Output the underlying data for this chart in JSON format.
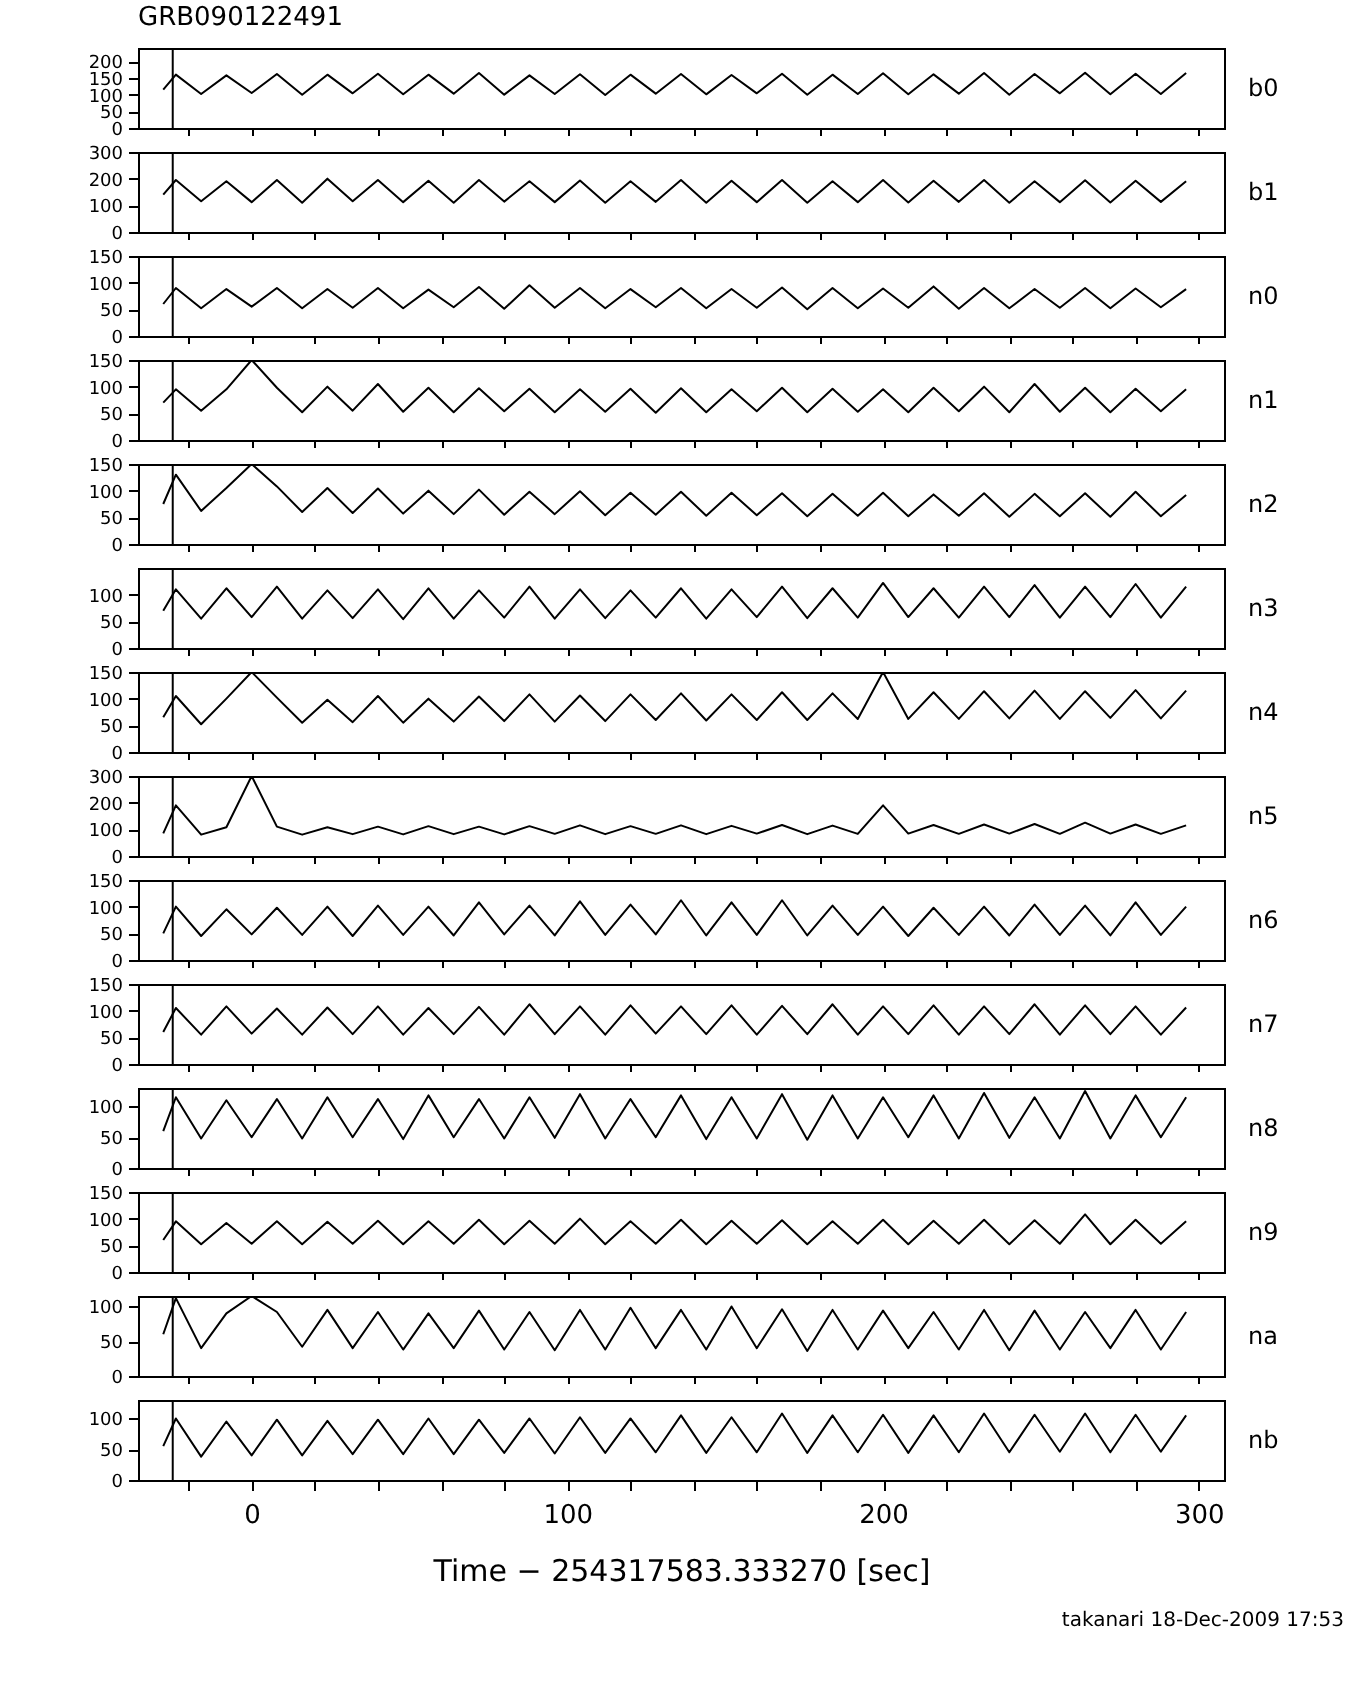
{
  "chart_data": [
    {
      "type": "line",
      "title": "GRB090122491",
      "xlim": [
        -36,
        308
      ],
      "xticks": [
        {
          "value": -20,
          "label": null
        },
        0,
        {
          "value": 20,
          "label": null
        },
        {
          "value": 40,
          "label": null
        },
        {
          "value": 60,
          "label": null
        },
        {
          "value": 80,
          "label": null
        },
        100,
        {
          "value": 120,
          "label": null
        },
        {
          "value": 140,
          "label": null
        },
        {
          "value": 160,
          "label": null
        },
        {
          "value": 180,
          "label": null
        },
        200,
        {
          "value": 220,
          "label": null
        },
        {
          "value": 240,
          "label": null
        },
        {
          "value": 260,
          "label": null
        },
        {
          "value": 280,
          "label": null
        },
        300
      ],
      "ylim": [
        0,
        240
      ],
      "yticks": [
        0,
        50,
        100,
        150,
        200
      ],
      "tick_labels": "y",
      "grid": false,
      "ref_lines": [
        {
          "axis": "x",
          "value": -25
        }
      ],
      "x": [
        -28,
        -24,
        -16,
        -8,
        0,
        8,
        16,
        24,
        32,
        40,
        48,
        56,
        64,
        72,
        80,
        88,
        96,
        104,
        112,
        120,
        128,
        136,
        144,
        152,
        160,
        168,
        176,
        184,
        192,
        200,
        208,
        216,
        224,
        232,
        240,
        248,
        256,
        264,
        272,
        280,
        288,
        296
      ],
      "series": [
        {
          "name": "b0",
          "color": "#000000",
          "values": [
            115,
            160,
            102,
            158,
            105,
            162,
            100,
            160,
            104,
            163,
            101,
            160,
            103,
            165,
            100,
            158,
            102,
            161,
            99,
            160,
            103,
            162,
            101,
            159,
            104,
            163,
            100,
            160,
            102,
            164,
            101,
            161,
            103,
            165,
            100,
            162,
            104,
            166,
            101,
            163,
            102,
            165
          ]
        }
      ]
    },
    {
      "type": "line",
      "xlim": [
        -36,
        308
      ],
      "xticks": [
        {
          "value": -20,
          "label": null
        },
        0,
        {
          "value": 20,
          "label": null
        },
        {
          "value": 40,
          "label": null
        },
        {
          "value": 60,
          "label": null
        },
        {
          "value": 80,
          "label": null
        },
        100,
        {
          "value": 120,
          "label": null
        },
        {
          "value": 140,
          "label": null
        },
        {
          "value": 160,
          "label": null
        },
        {
          "value": 180,
          "label": null
        },
        200,
        {
          "value": 220,
          "label": null
        },
        {
          "value": 240,
          "label": null
        },
        {
          "value": 260,
          "label": null
        },
        {
          "value": 280,
          "label": null
        },
        300
      ],
      "ylim": [
        0,
        300
      ],
      "yticks": [
        0,
        100,
        200,
        300
      ],
      "tick_labels": "y",
      "grid": false,
      "ref_lines": [
        {
          "axis": "x",
          "value": -25
        }
      ],
      "x": [
        -28,
        -24,
        -16,
        -8,
        0,
        8,
        16,
        24,
        32,
        40,
        48,
        56,
        64,
        72,
        80,
        88,
        96,
        104,
        112,
        120,
        128,
        136,
        144,
        152,
        160,
        168,
        176,
        184,
        192,
        200,
        208,
        216,
        224,
        232,
        240,
        248,
        256,
        264,
        272,
        280,
        288,
        296
      ],
      "series": [
        {
          "name": "b1",
          "color": "#000000",
          "values": [
            140,
            195,
            115,
            190,
            112,
            195,
            110,
            200,
            115,
            195,
            112,
            192,
            110,
            195,
            114,
            190,
            112,
            193,
            110,
            190,
            113,
            195,
            110,
            192,
            112,
            195,
            110,
            190,
            112,
            195,
            111,
            192,
            113,
            195,
            110,
            190,
            112,
            194,
            111,
            192,
            113,
            190
          ]
        }
      ]
    },
    {
      "type": "line",
      "xlim": [
        -36,
        308
      ],
      "xticks": [
        {
          "value": -20,
          "label": null
        },
        0,
        {
          "value": 20,
          "label": null
        },
        {
          "value": 40,
          "label": null
        },
        {
          "value": 60,
          "label": null
        },
        {
          "value": 80,
          "label": null
        },
        100,
        {
          "value": 120,
          "label": null
        },
        {
          "value": 140,
          "label": null
        },
        {
          "value": 160,
          "label": null
        },
        {
          "value": 180,
          "label": null
        },
        200,
        {
          "value": 220,
          "label": null
        },
        {
          "value": 240,
          "label": null
        },
        {
          "value": 260,
          "label": null
        },
        {
          "value": 280,
          "label": null
        },
        300
      ],
      "ylim": [
        0,
        150
      ],
      "yticks": [
        0,
        50,
        100,
        150
      ],
      "tick_labels": "y",
      "grid": false,
      "ref_lines": [
        {
          "axis": "x",
          "value": -25
        }
      ],
      "x": [
        -28,
        -24,
        -16,
        -8,
        0,
        8,
        16,
        24,
        32,
        40,
        48,
        56,
        64,
        72,
        80,
        88,
        96,
        104,
        112,
        120,
        128,
        136,
        144,
        152,
        160,
        168,
        176,
        184,
        192,
        200,
        208,
        216,
        224,
        232,
        240,
        248,
        256,
        264,
        272,
        280,
        288,
        296
      ],
      "series": [
        {
          "name": "n0",
          "color": "#000000",
          "values": [
            60,
            90,
            52,
            88,
            55,
            90,
            52,
            88,
            53,
            90,
            52,
            87,
            54,
            92,
            51,
            95,
            53,
            90,
            52,
            88,
            54,
            90,
            52,
            88,
            53,
            91,
            50,
            90,
            52,
            89,
            53,
            93,
            51,
            90,
            52,
            88,
            53,
            90,
            52,
            89,
            54,
            88
          ]
        }
      ]
    },
    {
      "type": "line",
      "xlim": [
        -36,
        308
      ],
      "xticks": [
        {
          "value": -20,
          "label": null
        },
        0,
        {
          "value": 20,
          "label": null
        },
        {
          "value": 40,
          "label": null
        },
        {
          "value": 60,
          "label": null
        },
        {
          "value": 80,
          "label": null
        },
        100,
        {
          "value": 120,
          "label": null
        },
        {
          "value": 140,
          "label": null
        },
        {
          "value": 160,
          "label": null
        },
        {
          "value": 180,
          "label": null
        },
        200,
        {
          "value": 220,
          "label": null
        },
        {
          "value": 240,
          "label": null
        },
        {
          "value": 260,
          "label": null
        },
        {
          "value": 280,
          "label": null
        },
        300
      ],
      "ylim": [
        0,
        150
      ],
      "yticks": [
        0,
        50,
        100,
        150
      ],
      "tick_labels": "y",
      "grid": false,
      "ref_lines": [
        {
          "axis": "x",
          "value": -25
        }
      ],
      "x": [
        -28,
        -24,
        -16,
        -8,
        0,
        8,
        16,
        24,
        32,
        40,
        48,
        56,
        64,
        72,
        80,
        88,
        96,
        104,
        112,
        120,
        128,
        136,
        144,
        152,
        160,
        168,
        176,
        184,
        192,
        200,
        208,
        216,
        224,
        232,
        240,
        248,
        256,
        264,
        272,
        280,
        288,
        296
      ],
      "series": [
        {
          "name": "n1",
          "color": "#000000",
          "values": [
            70,
            95,
            55,
            95,
            150,
            98,
            52,
            100,
            55,
            105,
            53,
            98,
            52,
            97,
            54,
            96,
            52,
            95,
            53,
            96,
            51,
            97,
            52,
            95,
            54,
            98,
            52,
            96,
            53,
            95,
            52,
            98,
            54,
            100,
            52,
            105,
            53,
            98,
            52,
            96,
            54,
            95
          ]
        }
      ]
    },
    {
      "type": "line",
      "xlim": [
        -36,
        308
      ],
      "xticks": [
        {
          "value": -20,
          "label": null
        },
        0,
        {
          "value": 20,
          "label": null
        },
        {
          "value": 40,
          "label": null
        },
        {
          "value": 60,
          "label": null
        },
        {
          "value": 80,
          "label": null
        },
        100,
        {
          "value": 120,
          "label": null
        },
        {
          "value": 140,
          "label": null
        },
        {
          "value": 160,
          "label": null
        },
        {
          "value": 180,
          "label": null
        },
        200,
        {
          "value": 220,
          "label": null
        },
        {
          "value": 240,
          "label": null
        },
        {
          "value": 260,
          "label": null
        },
        {
          "value": 280,
          "label": null
        },
        300
      ],
      "ylim": [
        0,
        150
      ],
      "yticks": [
        0,
        50,
        100,
        150
      ],
      "tick_labels": "y",
      "grid": false,
      "ref_lines": [
        {
          "axis": "x",
          "value": -25
        }
      ],
      "x": [
        -28,
        -24,
        -16,
        -8,
        0,
        8,
        16,
        24,
        32,
        40,
        48,
        56,
        64,
        72,
        80,
        88,
        96,
        104,
        112,
        120,
        128,
        136,
        144,
        152,
        160,
        168,
        176,
        184,
        192,
        200,
        208,
        216,
        224,
        232,
        240,
        248,
        256,
        264,
        272,
        280,
        288,
        296
      ],
      "series": [
        {
          "name": "n2",
          "color": "#000000",
          "values": [
            75,
            130,
            62,
            105,
            150,
            108,
            60,
            105,
            58,
            104,
            57,
            100,
            56,
            102,
            55,
            98,
            56,
            99,
            54,
            96,
            55,
            98,
            53,
            96,
            54,
            95,
            52,
            94,
            53,
            96,
            52,
            93,
            53,
            95,
            51,
            94,
            52,
            95,
            51,
            98,
            52,
            92
          ]
        }
      ]
    },
    {
      "type": "line",
      "xlim": [
        -36,
        308
      ],
      "xticks": [
        {
          "value": -20,
          "label": null
        },
        0,
        {
          "value": 20,
          "label": null
        },
        {
          "value": 40,
          "label": null
        },
        {
          "value": 60,
          "label": null
        },
        {
          "value": 80,
          "label": null
        },
        100,
        {
          "value": 120,
          "label": null
        },
        {
          "value": 140,
          "label": null
        },
        {
          "value": 160,
          "label": null
        },
        {
          "value": 180,
          "label": null
        },
        200,
        {
          "value": 220,
          "label": null
        },
        {
          "value": 240,
          "label": null
        },
        {
          "value": 260,
          "label": null
        },
        {
          "value": 280,
          "label": null
        },
        300
      ],
      "ylim": [
        0,
        150
      ],
      "yticks": [
        0,
        50,
        100
      ],
      "tick_labels": "y",
      "grid": false,
      "ref_lines": [
        {
          "axis": "x",
          "value": -25
        }
      ],
      "x": [
        -28,
        -24,
        -16,
        -8,
        0,
        8,
        16,
        24,
        32,
        40,
        48,
        56,
        64,
        72,
        80,
        88,
        96,
        104,
        112,
        120,
        128,
        136,
        144,
        152,
        160,
        168,
        176,
        184,
        192,
        200,
        208,
        216,
        224,
        232,
        240,
        248,
        256,
        264,
        272,
        280,
        288,
        296
      ],
      "series": [
        {
          "name": "n3",
          "color": "#000000",
          "values": [
            70,
            110,
            55,
            112,
            58,
            115,
            55,
            108,
            56,
            110,
            54,
            112,
            55,
            108,
            57,
            115,
            55,
            110,
            56,
            108,
            57,
            112,
            55,
            110,
            58,
            115,
            56,
            112,
            57,
            122,
            58,
            112,
            57,
            115,
            58,
            118,
            57,
            115,
            58,
            120,
            57,
            115
          ]
        }
      ]
    },
    {
      "type": "line",
      "xlim": [
        -36,
        308
      ],
      "xticks": [
        {
          "value": -20,
          "label": null
        },
        0,
        {
          "value": 20,
          "label": null
        },
        {
          "value": 40,
          "label": null
        },
        {
          "value": 60,
          "label": null
        },
        {
          "value": 80,
          "label": null
        },
        100,
        {
          "value": 120,
          "label": null
        },
        {
          "value": 140,
          "label": null
        },
        {
          "value": 160,
          "label": null
        },
        {
          "value": 180,
          "label": null
        },
        200,
        {
          "value": 220,
          "label": null
        },
        {
          "value": 240,
          "label": null
        },
        {
          "value": 260,
          "label": null
        },
        {
          "value": 280,
          "label": null
        },
        300
      ],
      "ylim": [
        0,
        150
      ],
      "yticks": [
        0,
        50,
        100,
        150
      ],
      "tick_labels": "y",
      "grid": false,
      "ref_lines": [
        {
          "axis": "x",
          "value": -25
        }
      ],
      "x": [
        -28,
        -24,
        -16,
        -8,
        0,
        8,
        16,
        24,
        32,
        40,
        48,
        56,
        64,
        72,
        80,
        88,
        96,
        104,
        112,
        120,
        128,
        136,
        144,
        152,
        160,
        168,
        176,
        184,
        192,
        200,
        208,
        216,
        224,
        232,
        240,
        248,
        256,
        264,
        272,
        280,
        288,
        296
      ],
      "series": [
        {
          "name": "n4",
          "color": "#000000",
          "values": [
            65,
            105,
            52,
            100,
            150,
            102,
            55,
            98,
            56,
            105,
            55,
            100,
            57,
            104,
            58,
            108,
            57,
            106,
            58,
            108,
            60,
            110,
            59,
            108,
            60,
            112,
            60,
            110,
            62,
            150,
            62,
            112,
            62,
            114,
            63,
            115,
            62,
            114,
            64,
            116,
            63,
            115
          ]
        }
      ]
    },
    {
      "type": "line",
      "xlim": [
        -36,
        308
      ],
      "xticks": [
        {
          "value": -20,
          "label": null
        },
        0,
        {
          "value": 20,
          "label": null
        },
        {
          "value": 40,
          "label": null
        },
        {
          "value": 60,
          "label": null
        },
        {
          "value": 80,
          "label": null
        },
        100,
        {
          "value": 120,
          "label": null
        },
        {
          "value": 140,
          "label": null
        },
        {
          "value": 160,
          "label": null
        },
        {
          "value": 180,
          "label": null
        },
        200,
        {
          "value": 220,
          "label": null
        },
        {
          "value": 240,
          "label": null
        },
        {
          "value": 260,
          "label": null
        },
        {
          "value": 280,
          "label": null
        },
        300
      ],
      "ylim": [
        0,
        300
      ],
      "yticks": [
        0,
        100,
        200,
        300
      ],
      "tick_labels": "y",
      "grid": false,
      "ref_lines": [
        {
          "axis": "x",
          "value": -25
        }
      ],
      "x": [
        -28,
        -24,
        -16,
        -8,
        0,
        8,
        16,
        24,
        32,
        40,
        48,
        56,
        64,
        72,
        80,
        88,
        96,
        104,
        112,
        120,
        128,
        136,
        144,
        152,
        160,
        168,
        176,
        184,
        192,
        200,
        208,
        216,
        224,
        232,
        240,
        248,
        256,
        264,
        272,
        280,
        288,
        296
      ],
      "series": [
        {
          "name": "n5",
          "color": "#000000",
          "values": [
            85,
            190,
            80,
            108,
            300,
            110,
            80,
            108,
            82,
            110,
            81,
            112,
            82,
            110,
            81,
            112,
            83,
            115,
            82,
            112,
            83,
            115,
            82,
            113,
            84,
            116,
            82,
            114,
            83,
            190,
            84,
            116,
            83,
            118,
            84,
            120,
            83,
            125,
            84,
            118,
            83,
            115
          ]
        }
      ]
    },
    {
      "type": "line",
      "xlim": [
        -36,
        308
      ],
      "xticks": [
        {
          "value": -20,
          "label": null
        },
        0,
        {
          "value": 20,
          "label": null
        },
        {
          "value": 40,
          "label": null
        },
        {
          "value": 60,
          "label": null
        },
        {
          "value": 80,
          "label": null
        },
        100,
        {
          "value": 120,
          "label": null
        },
        {
          "value": 140,
          "label": null
        },
        {
          "value": 160,
          "label": null
        },
        {
          "value": 180,
          "label": null
        },
        200,
        {
          "value": 220,
          "label": null
        },
        {
          "value": 240,
          "label": null
        },
        {
          "value": 260,
          "label": null
        },
        {
          "value": 280,
          "label": null
        },
        300
      ],
      "ylim": [
        0,
        150
      ],
      "yticks": [
        0,
        50,
        100,
        150
      ],
      "tick_labels": "y",
      "grid": false,
      "ref_lines": [
        {
          "axis": "x",
          "value": -25
        }
      ],
      "x": [
        -28,
        -24,
        -16,
        -8,
        0,
        8,
        16,
        24,
        32,
        40,
        48,
        56,
        64,
        72,
        80,
        88,
        96,
        104,
        112,
        120,
        128,
        136,
        144,
        152,
        160,
        168,
        176,
        184,
        192,
        200,
        208,
        216,
        224,
        232,
        240,
        248,
        256,
        264,
        272,
        280,
        288,
        296
      ],
      "series": [
        {
          "name": "n6",
          "color": "#000000",
          "values": [
            50,
            100,
            45,
            95,
            48,
            98,
            47,
            100,
            45,
            102,
            47,
            100,
            46,
            108,
            48,
            102,
            46,
            110,
            47,
            104,
            48,
            112,
            46,
            108,
            47,
            112,
            46,
            102,
            47,
            100,
            45,
            98,
            47,
            100,
            46,
            104,
            47,
            102,
            46,
            108,
            47,
            100
          ]
        }
      ]
    },
    {
      "type": "line",
      "xlim": [
        -36,
        308
      ],
      "xticks": [
        {
          "value": -20,
          "label": null
        },
        0,
        {
          "value": 20,
          "label": null
        },
        {
          "value": 40,
          "label": null
        },
        {
          "value": 60,
          "label": null
        },
        {
          "value": 80,
          "label": null
        },
        100,
        {
          "value": 120,
          "label": null
        },
        {
          "value": 140,
          "label": null
        },
        {
          "value": 160,
          "label": null
        },
        {
          "value": 180,
          "label": null
        },
        200,
        {
          "value": 220,
          "label": null
        },
        {
          "value": 240,
          "label": null
        },
        {
          "value": 260,
          "label": null
        },
        {
          "value": 280,
          "label": null
        },
        300
      ],
      "ylim": [
        0,
        150
      ],
      "yticks": [
        0,
        50,
        100,
        150
      ],
      "tick_labels": "y",
      "grid": false,
      "ref_lines": [
        {
          "axis": "x",
          "value": -25
        }
      ],
      "x": [
        -28,
        -24,
        -16,
        -8,
        0,
        8,
        16,
        24,
        32,
        40,
        48,
        56,
        64,
        72,
        80,
        88,
        96,
        104,
        112,
        120,
        128,
        136,
        144,
        152,
        160,
        168,
        176,
        184,
        192,
        200,
        208,
        216,
        224,
        232,
        240,
        248,
        256,
        264,
        272,
        280,
        288,
        296
      ],
      "series": [
        {
          "name": "n7",
          "color": "#000000",
          "values": [
            60,
            105,
            55,
            108,
            57,
            104,
            55,
            106,
            56,
            108,
            55,
            105,
            56,
            107,
            55,
            112,
            56,
            108,
            55,
            110,
            57,
            108,
            56,
            110,
            55,
            109,
            56,
            112,
            55,
            108,
            56,
            110,
            55,
            108,
            56,
            112,
            55,
            110,
            56,
            108,
            55,
            106
          ]
        }
      ]
    },
    {
      "type": "line",
      "xlim": [
        -36,
        308
      ],
      "xticks": [
        {
          "value": -20,
          "label": null
        },
        0,
        {
          "value": 20,
          "label": null
        },
        {
          "value": 40,
          "label": null
        },
        {
          "value": 60,
          "label": null
        },
        {
          "value": 80,
          "label": null
        },
        100,
        {
          "value": 120,
          "label": null
        },
        {
          "value": 140,
          "label": null
        },
        {
          "value": 160,
          "label": null
        },
        {
          "value": 180,
          "label": null
        },
        200,
        {
          "value": 220,
          "label": null
        },
        {
          "value": 240,
          "label": null
        },
        {
          "value": 260,
          "label": null
        },
        {
          "value": 280,
          "label": null
        },
        300
      ],
      "ylim": [
        0,
        130
      ],
      "yticks": [
        0,
        50,
        100
      ],
      "tick_labels": "y",
      "grid": false,
      "ref_lines": [
        {
          "axis": "x",
          "value": -25
        }
      ],
      "x": [
        -28,
        -24,
        -16,
        -8,
        0,
        8,
        16,
        24,
        32,
        40,
        48,
        56,
        64,
        72,
        80,
        88,
        96,
        104,
        112,
        120,
        128,
        136,
        144,
        152,
        160,
        168,
        176,
        184,
        192,
        200,
        208,
        216,
        224,
        232,
        240,
        248,
        256,
        264,
        272,
        280,
        288,
        296
      ],
      "series": [
        {
          "name": "n8",
          "color": "#000000",
          "values": [
            60,
            115,
            48,
            110,
            50,
            112,
            48,
            115,
            50,
            112,
            47,
            118,
            50,
            112,
            48,
            115,
            49,
            120,
            48,
            112,
            50,
            118,
            47,
            115,
            48,
            120,
            46,
            118,
            48,
            115,
            50,
            118,
            48,
            122,
            49,
            115,
            48,
            125,
            48,
            118,
            50,
            115
          ]
        }
      ]
    },
    {
      "type": "line",
      "xlim": [
        -36,
        308
      ],
      "xticks": [
        {
          "value": -20,
          "label": null
        },
        0,
        {
          "value": 20,
          "label": null
        },
        {
          "value": 40,
          "label": null
        },
        {
          "value": 60,
          "label": null
        },
        {
          "value": 80,
          "label": null
        },
        100,
        {
          "value": 120,
          "label": null
        },
        {
          "value": 140,
          "label": null
        },
        {
          "value": 160,
          "label": null
        },
        {
          "value": 180,
          "label": null
        },
        200,
        {
          "value": 220,
          "label": null
        },
        {
          "value": 240,
          "label": null
        },
        {
          "value": 260,
          "label": null
        },
        {
          "value": 280,
          "label": null
        },
        300
      ],
      "ylim": [
        0,
        150
      ],
      "yticks": [
        0,
        50,
        100,
        150
      ],
      "tick_labels": "y",
      "grid": false,
      "ref_lines": [
        {
          "axis": "x",
          "value": -25
        }
      ],
      "x": [
        -28,
        -24,
        -16,
        -8,
        0,
        8,
        16,
        24,
        32,
        40,
        48,
        56,
        64,
        72,
        80,
        88,
        96,
        104,
        112,
        120,
        128,
        136,
        144,
        152,
        160,
        168,
        176,
        184,
        192,
        200,
        208,
        216,
        224,
        232,
        240,
        248,
        256,
        264,
        272,
        280,
        288,
        296
      ],
      "series": [
        {
          "name": "n9",
          "color": "#000000",
          "values": [
            60,
            95,
            52,
            92,
            53,
            95,
            52,
            94,
            53,
            96,
            52,
            95,
            53,
            98,
            52,
            96,
            53,
            100,
            52,
            95,
            53,
            98,
            52,
            96,
            53,
            97,
            52,
            95,
            53,
            98,
            52,
            96,
            53,
            98,
            52,
            97,
            53,
            108,
            52,
            98,
            53,
            95
          ]
        }
      ]
    },
    {
      "type": "line",
      "xlim": [
        -36,
        308
      ],
      "xticks": [
        {
          "value": -20,
          "label": null
        },
        0,
        {
          "value": 20,
          "label": null
        },
        {
          "value": 40,
          "label": null
        },
        {
          "value": 60,
          "label": null
        },
        {
          "value": 80,
          "label": null
        },
        100,
        {
          "value": 120,
          "label": null
        },
        {
          "value": 140,
          "label": null
        },
        {
          "value": 160,
          "label": null
        },
        {
          "value": 180,
          "label": null
        },
        200,
        {
          "value": 220,
          "label": null
        },
        {
          "value": 240,
          "label": null
        },
        {
          "value": 260,
          "label": null
        },
        {
          "value": 280,
          "label": null
        },
        300
      ],
      "ylim": [
        0,
        115
      ],
      "yticks": [
        0,
        50,
        100
      ],
      "tick_labels": "y",
      "grid": false,
      "ref_lines": [
        {
          "axis": "x",
          "value": -25
        }
      ],
      "x": [
        -28,
        -24,
        -16,
        -8,
        0,
        8,
        16,
        24,
        32,
        40,
        48,
        56,
        64,
        72,
        80,
        88,
        96,
        104,
        112,
        120,
        128,
        136,
        144,
        152,
        160,
        168,
        176,
        184,
        192,
        200,
        208,
        216,
        224,
        232,
        240,
        248,
        256,
        264,
        272,
        280,
        288,
        296
      ],
      "series": [
        {
          "name": "na",
          "color": "#000000",
          "values": [
            60,
            112,
            40,
            90,
            115,
            92,
            42,
            95,
            40,
            92,
            38,
            90,
            40,
            94,
            38,
            92,
            37,
            95,
            38,
            98,
            40,
            95,
            38,
            100,
            40,
            96,
            36,
            95,
            38,
            94,
            40,
            92,
            38,
            95,
            37,
            94,
            38,
            92,
            40,
            95,
            38,
            92
          ]
        }
      ]
    },
    {
      "type": "line",
      "xlabel": "Time − 254317583.333270 [sec]",
      "annotations": [
        "takanari 18-Dec-2009 17:53"
      ],
      "xlim": [
        -36,
        308
      ],
      "xticks": [
        {
          "value": -20,
          "label": null
        },
        0,
        {
          "value": 20,
          "label": null
        },
        {
          "value": 40,
          "label": null
        },
        {
          "value": 60,
          "label": null
        },
        {
          "value": 80,
          "label": null
        },
        100,
        {
          "value": 120,
          "label": null
        },
        {
          "value": 140,
          "label": null
        },
        {
          "value": 160,
          "label": null
        },
        {
          "value": 180,
          "label": null
        },
        200,
        {
          "value": 220,
          "label": null
        },
        {
          "value": 240,
          "label": null
        },
        {
          "value": 260,
          "label": null
        },
        {
          "value": 280,
          "label": null
        },
        300
      ],
      "ylim": [
        0,
        130
      ],
      "yticks": [
        0,
        50,
        100
      ],
      "grid": false,
      "ref_lines": [
        {
          "axis": "x",
          "value": -25
        }
      ],
      "x": [
        -28,
        -24,
        -16,
        -8,
        0,
        8,
        16,
        24,
        32,
        40,
        48,
        56,
        64,
        72,
        80,
        88,
        96,
        104,
        112,
        120,
        128,
        136,
        144,
        152,
        160,
        168,
        176,
        184,
        192,
        200,
        208,
        216,
        224,
        232,
        240,
        248,
        256,
        264,
        272,
        280,
        288,
        296
      ],
      "series": [
        {
          "name": "nb",
          "color": "#000000",
          "values": [
            55,
            100,
            38,
            95,
            40,
            98,
            40,
            96,
            42,
            98,
            42,
            100,
            42,
            98,
            44,
            100,
            43,
            102,
            44,
            100,
            45,
            105,
            44,
            102,
            45,
            108,
            44,
            105,
            45,
            106,
            44,
            105,
            45,
            108,
            45,
            106,
            46,
            108,
            45,
            106,
            46,
            105
          ]
        }
      ]
    }
  ]
}
